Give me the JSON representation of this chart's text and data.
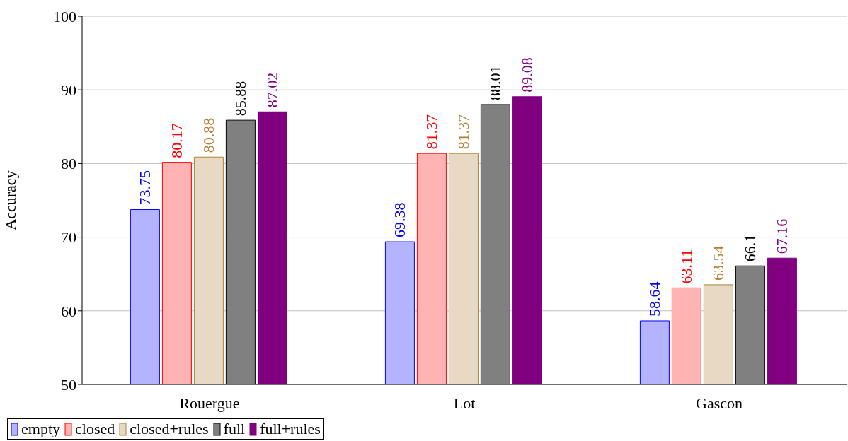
{
  "chart_data": {
    "type": "bar",
    "ylabel": "Accuracy",
    "categories": [
      "Rouergue",
      "Lot",
      "Gascon"
    ],
    "series": [
      {
        "name": "empty",
        "color": "#b3b3ff",
        "values": [
          73.75,
          69.38,
          58.64
        ]
      },
      {
        "name": "closed",
        "color": "#ffb3b3",
        "values": [
          80.17,
          81.37,
          63.11
        ]
      },
      {
        "name": "closed+rules",
        "color": "#e8d9c4",
        "values": [
          80.88,
          81.37,
          63.54
        ]
      },
      {
        "name": "full",
        "color": "#808080",
        "values": [
          85.88,
          88.01,
          66.1
        ]
      },
      {
        "name": "full+rules",
        "color": "#800080",
        "values": [
          87.02,
          89.08,
          67.16
        ]
      }
    ],
    "ylim": [
      50,
      100
    ],
    "yticks": [
      50,
      60,
      70,
      80,
      90,
      100
    ],
    "grid": "y",
    "legend": "bottom",
    "data_labels": true
  }
}
